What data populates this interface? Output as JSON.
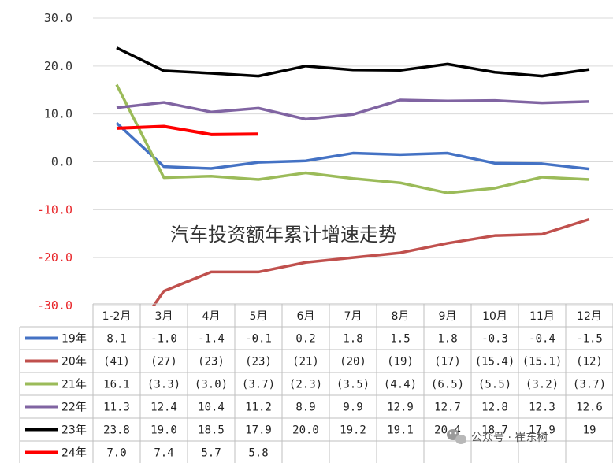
{
  "chart_data": {
    "type": "line",
    "title": "汽车投资额年累计增速走势",
    "categories": [
      "1-2月",
      "3月",
      "4月",
      "5月",
      "6月",
      "7月",
      "8月",
      "9月",
      "10月",
      "11月",
      "12月"
    ],
    "ylim": [
      -30,
      30
    ],
    "yticks": [
      "30.0",
      "20.0",
      "10.0",
      "0.0",
      "-10.0",
      "-20.0",
      "-30.0"
    ],
    "ytick_values": [
      30,
      20,
      10,
      0,
      -10,
      -20,
      -30
    ],
    "negative_tick_color": "#e8262a",
    "grid": true,
    "legend": "data-table",
    "series": [
      {
        "name": "19年",
        "color": "#4472c4",
        "values": [
          8.1,
          -1.0,
          -1.4,
          -0.1,
          0.2,
          1.8,
          1.5,
          1.8,
          -0.3,
          -0.4,
          -1.5
        ],
        "labels": [
          "8.1",
          "-1.0",
          "-1.4",
          "-0.1",
          "0.2",
          "1.8",
          "1.5",
          "1.8",
          "-0.3",
          "-0.4",
          "-1.5"
        ]
      },
      {
        "name": "20年",
        "color": "#c0504d",
        "values": [
          -41,
          -27,
          -23,
          -23,
          -21,
          -20,
          -19,
          -17,
          -15.4,
          -15.1,
          -12
        ],
        "labels": [
          "(41)",
          "(27)",
          "(23)",
          "(23)",
          "(21)",
          "(20)",
          "(19)",
          "(17)",
          "(15.4)",
          "(15.1)",
          "(12)"
        ]
      },
      {
        "name": "21年",
        "color": "#9bbb59",
        "values": [
          16.1,
          -3.3,
          -3.0,
          -3.7,
          -2.3,
          -3.5,
          -4.4,
          -6.5,
          -5.5,
          -3.2,
          -3.7
        ],
        "labels": [
          "16.1",
          "(3.3)",
          "(3.0)",
          "(3.7)",
          "(2.3)",
          "(3.5)",
          "(4.4)",
          "(6.5)",
          "(5.5)",
          "(3.2)",
          "(3.7)"
        ]
      },
      {
        "name": "22年",
        "color": "#8064a2",
        "values": [
          11.3,
          12.4,
          10.4,
          11.2,
          8.9,
          9.9,
          12.9,
          12.7,
          12.8,
          12.3,
          12.6
        ],
        "labels": [
          "11.3",
          "12.4",
          "10.4",
          "11.2",
          "8.9",
          "9.9",
          "12.9",
          "12.7",
          "12.8",
          "12.3",
          "12.6"
        ]
      },
      {
        "name": "23年",
        "color": "#000000",
        "values": [
          23.8,
          19.0,
          18.5,
          17.9,
          20.0,
          19.2,
          19.1,
          20.4,
          18.7,
          17.9,
          19.3
        ],
        "labels": [
          "23.8",
          "19.0",
          "18.5",
          "17.9",
          "20.0",
          "19.2",
          "19.1",
          "20.4",
          "18.7",
          "17.9",
          "19"
        ]
      },
      {
        "name": "24年",
        "color": "#ff0000",
        "values": [
          7.0,
          7.4,
          5.7,
          5.8,
          null,
          null,
          null,
          null,
          null,
          null,
          null
        ],
        "labels": [
          "7.0",
          "7.4",
          "5.7",
          "5.8",
          "",
          "",
          "",
          "",
          "",
          "",
          ""
        ]
      }
    ]
  },
  "watermark": {
    "icon": "wechat-icon",
    "text": "公众号 · 崔东树"
  }
}
